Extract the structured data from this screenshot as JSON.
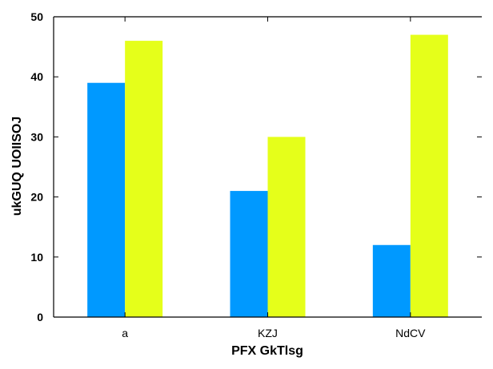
{
  "chart_data": {
    "type": "bar",
    "categories": [
      "a",
      "KZJ",
      "NdCV"
    ],
    "series": [
      {
        "values": [
          39,
          21,
          12
        ],
        "color": "#0099ff"
      },
      {
        "values": [
          46,
          30,
          47
        ],
        "color": "#e5ff1a"
      }
    ],
    "xlabel": "PFX GkTlsg",
    "ylabel": "ukGUQ UOIISOJ",
    "ylim": [
      0,
      50
    ],
    "yticks": [
      0,
      10,
      20,
      30,
      40,
      50
    ],
    "grid": false
  }
}
